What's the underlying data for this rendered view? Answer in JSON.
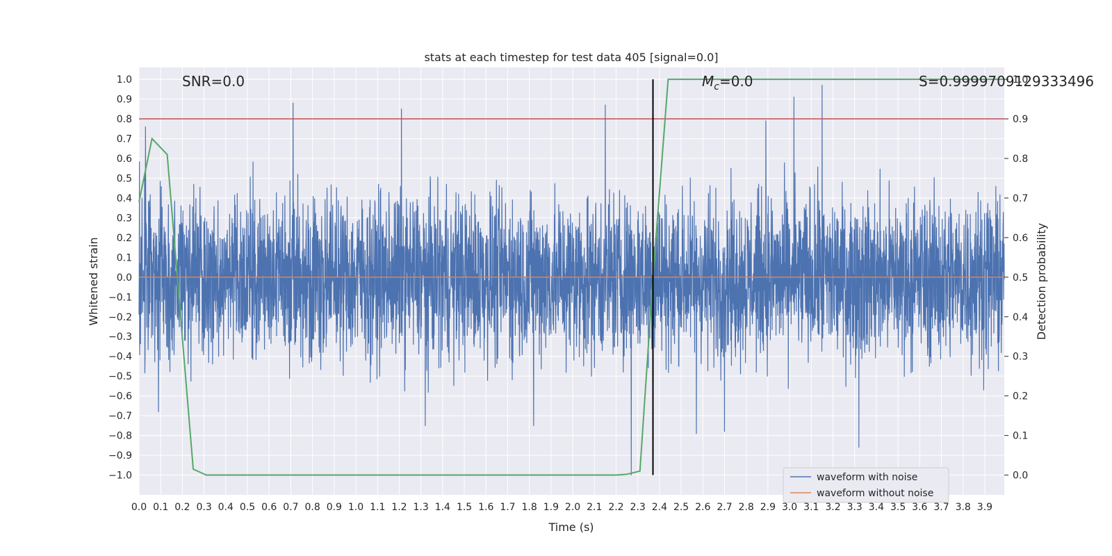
{
  "chart_data": {
    "type": "line",
    "title": "stats at each timestep for test data 405 [signal=0.0]",
    "xlabel": "Time (s)",
    "ylabel": "Whitened strain",
    "y2label": "Detection probability",
    "xlim": [
      0.0,
      3.99
    ],
    "ylim": [
      -1.1,
      1.06
    ],
    "y2lim": [
      -0.05,
      1.03
    ],
    "x_ticks": [
      0.0,
      0.1,
      0.2,
      0.3,
      0.4,
      0.5,
      0.6,
      0.7,
      0.8,
      0.9,
      1.0,
      1.1,
      1.2,
      1.3,
      1.4,
      1.5,
      1.6,
      1.7,
      1.8,
      1.9,
      2.0,
      2.1,
      2.2,
      2.3,
      2.4,
      2.5,
      2.6,
      2.7,
      2.8,
      2.9,
      3.0,
      3.1,
      3.2,
      3.3,
      3.4,
      3.5,
      3.6,
      3.7,
      3.8,
      3.9
    ],
    "y_ticks": [
      1.0,
      0.9,
      0.8,
      0.7,
      0.6,
      0.5,
      0.4,
      0.3,
      0.2,
      0.1,
      0.0,
      -0.1,
      -0.2,
      -0.3,
      -0.4,
      -0.5,
      -0.6,
      -0.7,
      -0.8,
      -0.9,
      -1.0
    ],
    "y2_ticks": [
      1.0,
      0.9,
      0.8,
      0.7,
      0.6,
      0.5,
      0.4,
      0.3,
      0.2,
      0.1,
      0.0
    ],
    "annotations": {
      "snr": "SNR=0.0",
      "mc_symbol": "M",
      "mc_sub": "c",
      "mc_value": "=0.0",
      "s": "S=0.9999709129333496"
    },
    "threshold": {
      "y2": 0.9,
      "color": "#c44e52"
    },
    "vline": {
      "x": 2.37,
      "color": "#000000"
    },
    "series": [
      {
        "name": "waveform with noise",
        "color": "#4c72b0",
        "axis": "left",
        "kind": "noise",
        "amplitude": 0.3,
        "samples": 4000
      },
      {
        "name": "waveform without noise",
        "color": "#dd8452",
        "axis": "left",
        "kind": "constant",
        "value": 0.0
      },
      {
        "name": "detection probability",
        "color": "#55a868",
        "axis": "right",
        "kind": "line",
        "x": [
          0.0,
          0.06,
          0.13,
          0.25,
          0.31,
          2.2,
          2.25,
          2.31,
          2.37,
          2.44,
          3.99
        ],
        "y": [
          0.69,
          0.85,
          0.81,
          0.015,
          0.0,
          0.0,
          0.002,
          0.01,
          0.5,
          1.0,
          1.0
        ]
      }
    ],
    "spikes": [
      {
        "x": 0.03,
        "y": 0.76
      },
      {
        "x": 0.71,
        "y": 0.88
      },
      {
        "x": 1.21,
        "y": 0.85
      },
      {
        "x": 2.15,
        "y": 0.87
      },
      {
        "x": 2.89,
        "y": 0.79
      },
      {
        "x": 3.02,
        "y": 0.91
      },
      {
        "x": 3.15,
        "y": 0.97
      },
      {
        "x": 2.27,
        "y": -1.0
      },
      {
        "x": 3.32,
        "y": -0.86
      },
      {
        "x": 1.32,
        "y": -0.75
      },
      {
        "x": 2.57,
        "y": -0.79
      },
      {
        "x": 2.7,
        "y": -0.78
      },
      {
        "x": 0.09,
        "y": -0.68
      },
      {
        "x": 1.82,
        "y": -0.75
      }
    ],
    "legend": {
      "location": "lower-right",
      "entries": [
        "waveform with noise",
        "waveform without noise"
      ]
    },
    "grid": true,
    "colors": {
      "plot_bg": "#eaeaf2",
      "grid": "#ffffff",
      "text": "#262626"
    }
  }
}
